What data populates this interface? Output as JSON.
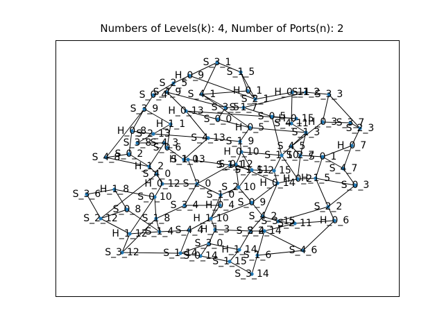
{
  "title": "Numbers of Levels(k): 4, Number of Ports(n): 2",
  "colors": {
    "node": "#1f77b4",
    "edge": "#000000",
    "frame": "#000000",
    "background": "#ffffff"
  },
  "nodes": [
    {
      "id": "S_3_1",
      "label": "S_3_1"
    },
    {
      "id": "S_1_5",
      "label": "S_1_5"
    },
    {
      "id": "H_0_9",
      "label": "H_0_9"
    },
    {
      "id": "S_2_5",
      "label": "S_2_5"
    },
    {
      "id": "S_0_4",
      "label": "S_0_4"
    },
    {
      "id": "S_4_9",
      "label": "S_4_9"
    },
    {
      "id": "S_4_1",
      "label": "S_4_1"
    },
    {
      "id": "H_0_1",
      "label": "H_0_1"
    },
    {
      "id": "S_2_1",
      "label": "S_2_1"
    },
    {
      "id": "H_0_11",
      "label": "H_0_11"
    },
    {
      "id": "S_1_2",
      "label": "S_1_2"
    },
    {
      "id": "S_3_3",
      "label": "S_3_3"
    },
    {
      "id": "S_1_7",
      "label": "S_1_7"
    },
    {
      "id": "S_3_9",
      "label": "S_3_9"
    },
    {
      "id": "H_0_13",
      "label": "H_0_13"
    },
    {
      "id": "S_3_5",
      "label": "S_3_5"
    },
    {
      "id": "S_0_0",
      "label": "S_0_0"
    },
    {
      "id": "S_0_5",
      "label": "S_0_5"
    },
    {
      "id": "H_0_15",
      "label": "H_0_15"
    },
    {
      "id": "S_4_11",
      "label": "S_4_11"
    },
    {
      "id": "H_0_3",
      "label": "H_0_3"
    },
    {
      "id": "S_3_7",
      "label": "S_3_7"
    },
    {
      "id": "S_2_3",
      "label": "S_2_3"
    },
    {
      "id": "H_1_1",
      "label": "H_1_1"
    },
    {
      "id": "H_0_5",
      "label": "H_0_5"
    },
    {
      "id": "S_1_3",
      "label": "S_1_3"
    },
    {
      "id": "H_0_8",
      "label": "H_0_8"
    },
    {
      "id": "S_2_13",
      "label": "S_2_13"
    },
    {
      "id": "S_4_13",
      "label": "S_4_13"
    },
    {
      "id": "S_1_9",
      "label": "S_1_9"
    },
    {
      "id": "S_3_8",
      "label": "S_3_8"
    },
    {
      "id": "S_4_3",
      "label": "S_4_3"
    },
    {
      "id": "H_0_7",
      "label": "H_0_7"
    },
    {
      "id": "S_4_5",
      "label": "S_4_5"
    },
    {
      "id": "S_0_6",
      "label": "S_0_6"
    },
    {
      "id": "S_4_8",
      "label": "S_4_8"
    },
    {
      "id": "S_0_2",
      "label": "S_0_2"
    },
    {
      "id": "H_1_0",
      "label": "H_1_0"
    },
    {
      "id": "H_0_10",
      "label": "H_0_10"
    },
    {
      "id": "S_1_10",
      "label": "S_1_10"
    },
    {
      "id": "S_2_7",
      "label": "S_2_7"
    },
    {
      "id": "S_0_1",
      "label": "S_0_1"
    },
    {
      "id": "H_1_2",
      "label": "H_1_2"
    },
    {
      "id": "S_1_13",
      "label": "S_1_13"
    },
    {
      "id": "S_1_1",
      "label": "S_1_1"
    },
    {
      "id": "S_4_7",
      "label": "S_4_7"
    },
    {
      "id": "S_4_0",
      "label": "S_4_0"
    },
    {
      "id": "S_1_11",
      "label": "S_1_11"
    },
    {
      "id": "S_0_12",
      "label": "S_0_12"
    },
    {
      "id": "S_2_15",
      "label": "S_2_15"
    },
    {
      "id": "H_0_2",
      "label": "H_0_2"
    },
    {
      "id": "S_3_6",
      "label": "S_3_6"
    },
    {
      "id": "H_1_8",
      "label": "H_1_8"
    },
    {
      "id": "H_0_12",
      "label": "H_0_12"
    },
    {
      "id": "S_2_0",
      "label": "S_2_0"
    },
    {
      "id": "S_2_10",
      "label": "S_2_10"
    },
    {
      "id": "H_0_14",
      "label": "H_0_14"
    },
    {
      "id": "S_0_3",
      "label": "S_0_3"
    },
    {
      "id": "S_0_10",
      "label": "S_0_10"
    },
    {
      "id": "S_1_0",
      "label": "S_1_0"
    },
    {
      "id": "H_1_5",
      "label": "H_1_5"
    },
    {
      "id": "S_0_9",
      "label": "S_0_9"
    },
    {
      "id": "S_3_4",
      "label": "S_3_4"
    },
    {
      "id": "H_0_4",
      "label": "H_0_4"
    },
    {
      "id": "S_1_8",
      "label": "S_1_8"
    },
    {
      "id": "S_2_2",
      "label": "S_2_2"
    },
    {
      "id": "S_2_12",
      "label": "S_2_12"
    },
    {
      "id": "S_0_8",
      "label": "S_0_8"
    },
    {
      "id": "S_4_2",
      "label": "S_4_2"
    },
    {
      "id": "S_3_15",
      "label": "S_3_15"
    },
    {
      "id": "H_1_10",
      "label": "H_1_10"
    },
    {
      "id": "S_2_11",
      "label": "S_2_11"
    },
    {
      "id": "H_0_6",
      "label": "H_0_6"
    },
    {
      "id": "H_1_12",
      "label": "H_1_12"
    },
    {
      "id": "S_1_4",
      "label": "S_1_4"
    },
    {
      "id": "S_4_4",
      "label": "S_4_4"
    },
    {
      "id": "H_1_3",
      "label": "H_1_3"
    },
    {
      "id": "S_2_4",
      "label": "S_2_4"
    },
    {
      "id": "S_2_14",
      "label": "S_2_14"
    },
    {
      "id": "S_3_0",
      "label": "S_3_0"
    },
    {
      "id": "H_1_14",
      "label": "H_1_14"
    },
    {
      "id": "S_3_12",
      "label": "S_3_12"
    },
    {
      "id": "S_1_14",
      "label": "S_1_14"
    },
    {
      "id": "S_1_6",
      "label": "S_1_6"
    },
    {
      "id": "S_4_6",
      "label": "S_4_6"
    },
    {
      "id": "S_0_14",
      "label": "S_0_14"
    },
    {
      "id": "S_3_14",
      "label": "S_3_14"
    },
    {
      "id": "S_1_15",
      "label": "S_1_15"
    }
  ]
}
